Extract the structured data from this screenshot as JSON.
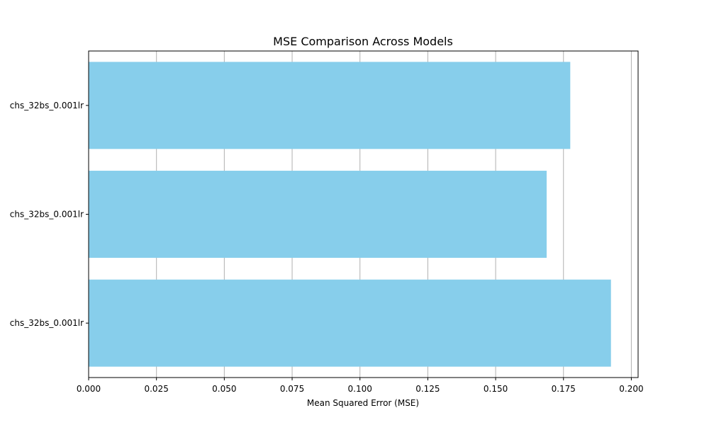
{
  "chart_data": {
    "type": "bar",
    "orientation": "horizontal",
    "title": "MSE Comparison Across Models",
    "xlabel": "Mean Squared Error (MSE)",
    "ylabel": "",
    "categories": [
      "chs_32bs_0.001lr",
      "chs_32bs_0.001lr",
      "chs_32bs_0.001lr"
    ],
    "category_order": "bottom-to-top",
    "values": [
      0.1925,
      0.1688,
      0.1775
    ],
    "xlim": [
      0,
      0.2025
    ],
    "xticks": [
      0.0,
      0.025,
      0.05,
      0.075,
      0.1,
      0.125,
      0.15,
      0.175,
      0.2
    ],
    "xtick_labels": [
      "0.000",
      "0.025",
      "0.050",
      "0.075",
      "0.100",
      "0.125",
      "0.150",
      "0.175",
      "0.200"
    ],
    "grid": "x-axis vertical lines",
    "legend": "none",
    "colors": {
      "bar": "#87ceeb",
      "grid": "#b0b0b0",
      "axis": "#000000",
      "background": "#ffffff"
    }
  }
}
